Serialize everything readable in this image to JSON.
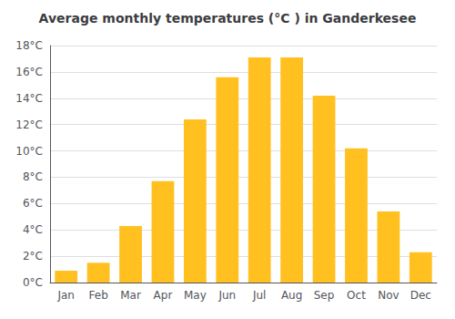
{
  "chart_data": {
    "type": "bar",
    "title": "Average monthly temperatures (°C ) in Ganderkesee",
    "categories": [
      "Jan",
      "Feb",
      "Mar",
      "Apr",
      "May",
      "Jun",
      "Jul",
      "Aug",
      "Sep",
      "Oct",
      "Nov",
      "Dec"
    ],
    "values": [
      0.9,
      1.5,
      4.3,
      7.7,
      12.4,
      15.6,
      17.1,
      17.1,
      14.2,
      10.2,
      5.4,
      2.3
    ],
    "color": "#FFC020",
    "ylim": [
      0,
      18
    ],
    "yticks": [
      {
        "value": 0,
        "label": "0°C"
      },
      {
        "value": 2,
        "label": "2°C"
      },
      {
        "value": 4,
        "label": "4°C"
      },
      {
        "value": 6,
        "label": "6°C"
      },
      {
        "value": 8,
        "label": "8°C"
      },
      {
        "value": 10,
        "label": "10°C"
      },
      {
        "value": 12,
        "label": "12°C"
      },
      {
        "value": 14,
        "label": "14°C"
      },
      {
        "value": 16,
        "label": "16°C"
      },
      {
        "value": 18,
        "label": "18°C"
      }
    ],
    "grid": true
  }
}
